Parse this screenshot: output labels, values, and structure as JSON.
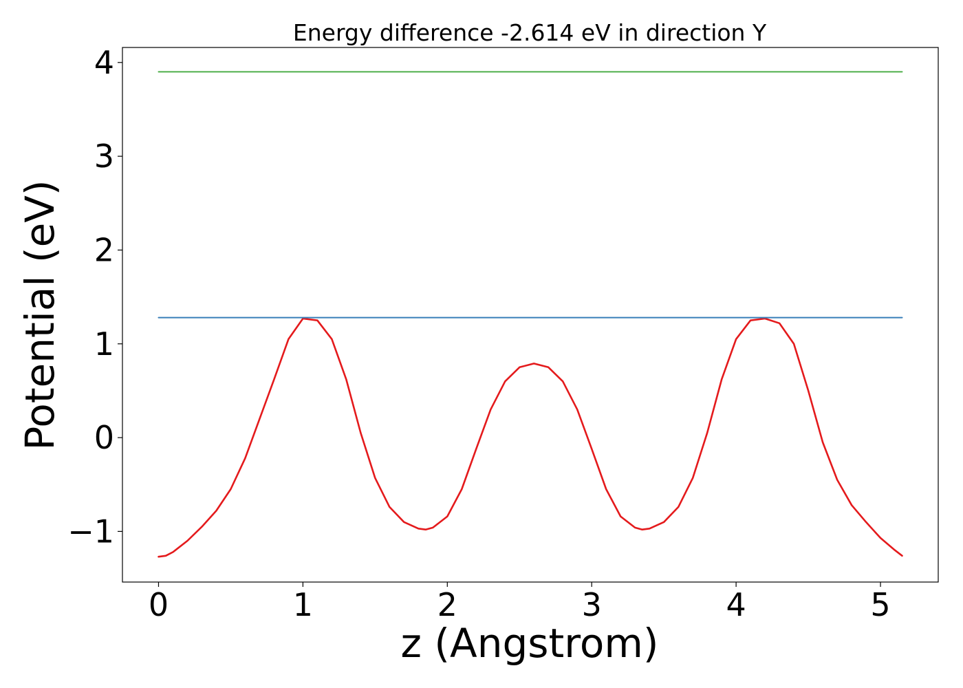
{
  "chart_data": {
    "type": "line",
    "title": "Energy difference -2.614 eV in direction Y",
    "xlabel": "z (Angstrom)",
    "ylabel": "Potential (eV)",
    "xlim": [
      -0.25,
      5.4
    ],
    "ylim": [
      -1.54,
      4.16
    ],
    "x_ticks": [
      0,
      1,
      2,
      3,
      4,
      5
    ],
    "x_tick_labels": [
      "0",
      "1",
      "2",
      "3",
      "4",
      "5"
    ],
    "y_ticks": [
      -1,
      0,
      1,
      2,
      3,
      4
    ],
    "y_tick_labels": [
      "−1",
      "0",
      "1",
      "2",
      "3",
      "4"
    ],
    "grid": false,
    "series": [
      {
        "color": "#e41a1c",
        "x": [
          0.0,
          0.05,
          0.1,
          0.2,
          0.3,
          0.4,
          0.5,
          0.6,
          0.7,
          0.8,
          0.9,
          1.0,
          1.1,
          1.2,
          1.3,
          1.4,
          1.5,
          1.6,
          1.7,
          1.8,
          1.85,
          1.9,
          2.0,
          2.1,
          2.2,
          2.3,
          2.4,
          2.5,
          2.6,
          2.7,
          2.8,
          2.9,
          3.0,
          3.1,
          3.2,
          3.3,
          3.35,
          3.4,
          3.5,
          3.6,
          3.7,
          3.8,
          3.9,
          4.0,
          4.1,
          4.2,
          4.3,
          4.4,
          4.5,
          4.6,
          4.7,
          4.8,
          4.9,
          5.0,
          5.1,
          5.15
        ],
        "y": [
          -1.27,
          -1.26,
          -1.22,
          -1.1,
          -0.95,
          -0.78,
          -0.55,
          -0.22,
          0.2,
          0.62,
          1.05,
          1.27,
          1.25,
          1.05,
          0.62,
          0.05,
          -0.43,
          -0.74,
          -0.9,
          -0.97,
          -0.98,
          -0.96,
          -0.84,
          -0.55,
          -0.12,
          0.3,
          0.6,
          0.75,
          0.79,
          0.75,
          0.6,
          0.3,
          -0.12,
          -0.55,
          -0.84,
          -0.96,
          -0.98,
          -0.97,
          -0.9,
          -0.74,
          -0.43,
          0.05,
          0.62,
          1.05,
          1.25,
          1.27,
          1.22,
          1.0,
          0.5,
          -0.05,
          -0.45,
          -0.72,
          -0.9,
          -1.07,
          -1.2,
          -1.26
        ]
      },
      {
        "color": "#377eb8",
        "x": [
          0.0,
          5.15
        ],
        "y": [
          1.28,
          1.28
        ]
      },
      {
        "color": "#4daf4a",
        "x": [
          0.0,
          5.15
        ],
        "y": [
          3.9,
          3.9
        ]
      }
    ]
  }
}
